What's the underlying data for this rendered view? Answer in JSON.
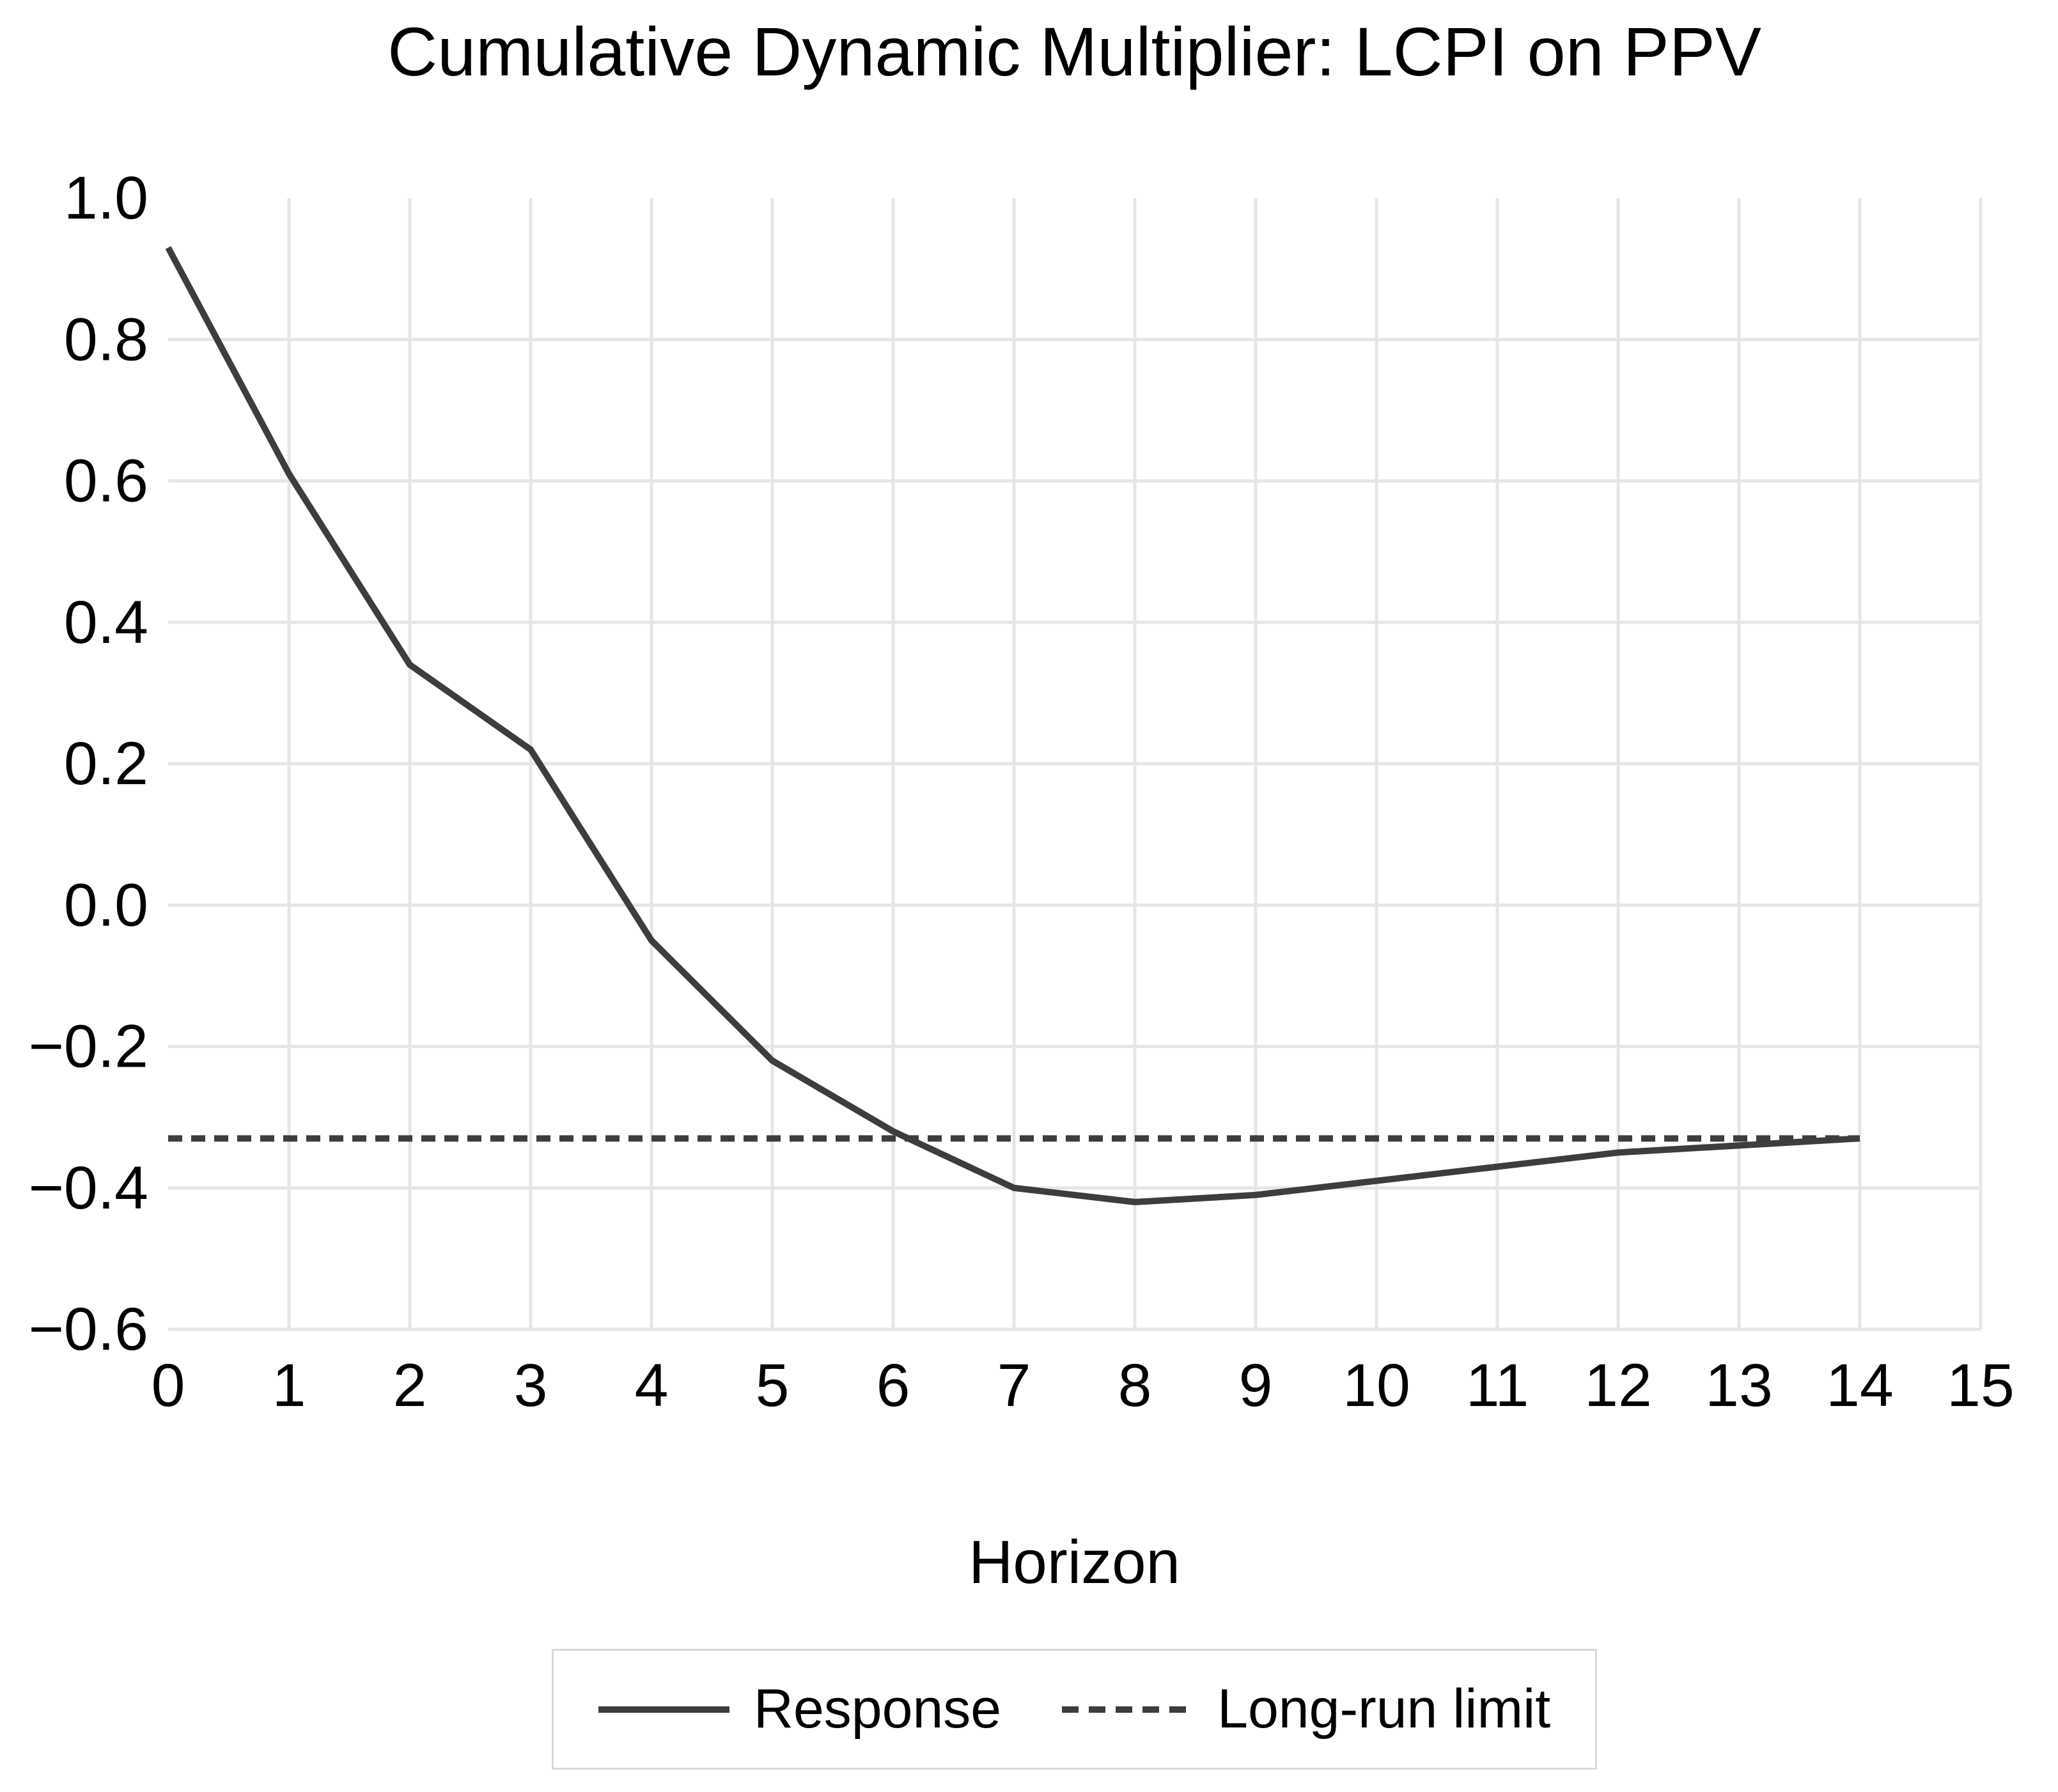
{
  "chart": {
    "title": "Cumulative Dynamic Multiplier: LCPI on PPV",
    "xlabel": "Horizon"
  },
  "legend": {
    "response_label": "Response",
    "longrun_label": "Long-run limit"
  },
  "colors": {
    "line": "#3d3d3d",
    "grid": "#e6e6e6",
    "text": "#000000",
    "legend_border": "#d9d9d9",
    "background": "#ffffff"
  },
  "chart_data": {
    "type": "line",
    "title": "Cumulative Dynamic Multiplier: LCPI on PPV",
    "xlabel": "Horizon",
    "ylabel": "",
    "xlim": [
      0,
      15
    ],
    "ylim": [
      -0.6,
      1.0
    ],
    "grid": true,
    "legend_position": "bottom",
    "series": [
      {
        "name": "Response",
        "style": "solid",
        "x": [
          0,
          1,
          2,
          3,
          4,
          5,
          6,
          7,
          8,
          9,
          10,
          11,
          12,
          13,
          14
        ],
        "y": [
          0.93,
          0.61,
          0.34,
          0.22,
          -0.05,
          -0.22,
          -0.32,
          -0.4,
          -0.42,
          -0.41,
          -0.39,
          -0.37,
          -0.35,
          -0.34,
          -0.33
        ]
      },
      {
        "name": "Long-run limit",
        "style": "dashed",
        "x": [
          0,
          14
        ],
        "y": [
          -0.33,
          -0.33
        ]
      }
    ],
    "x_ticks": [
      {
        "label": "0",
        "value": 0
      },
      {
        "label": "1",
        "value": 1
      },
      {
        "label": "2",
        "value": 2
      },
      {
        "label": "3",
        "value": 3
      },
      {
        "label": "4",
        "value": 4
      },
      {
        "label": "5",
        "value": 5
      },
      {
        "label": "6",
        "value": 6
      },
      {
        "label": "7",
        "value": 7
      },
      {
        "label": "8",
        "value": 8
      },
      {
        "label": "9",
        "value": 9
      },
      {
        "label": "10",
        "value": 10
      },
      {
        "label": "11",
        "value": 11
      },
      {
        "label": "12",
        "value": 12
      },
      {
        "label": "13",
        "value": 13
      },
      {
        "label": "14",
        "value": 14
      },
      {
        "label": "15",
        "value": 15
      }
    ],
    "y_ticks": [
      {
        "label": "1.0",
        "value": 1.0
      },
      {
        "label": "0.8",
        "value": 0.8
      },
      {
        "label": "0.6",
        "value": 0.6
      },
      {
        "label": "0.4",
        "value": 0.4
      },
      {
        "label": "0.2",
        "value": 0.2
      },
      {
        "label": "0.0",
        "value": 0.0
      },
      {
        "label": "−0.2",
        "value": -0.2
      },
      {
        "label": "−0.4",
        "value": -0.4
      },
      {
        "label": "−0.6",
        "value": -0.6
      }
    ]
  }
}
